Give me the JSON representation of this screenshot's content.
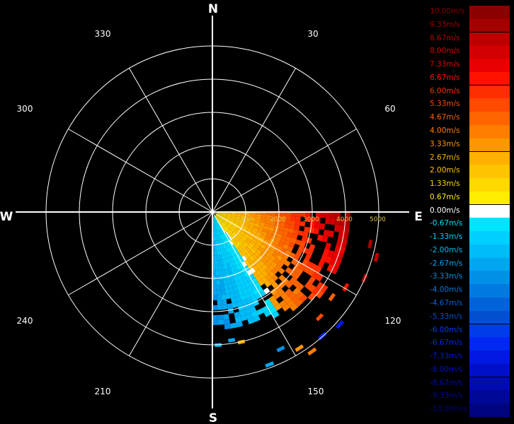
{
  "compass": {
    "north": "N",
    "east": "E",
    "south": "S",
    "west": "W"
  },
  "angle_labels": [
    "30",
    "60",
    "120",
    "150",
    "210",
    "240",
    "300",
    "330"
  ],
  "chart_data": {
    "type": "heatmap",
    "projection": "polar",
    "range_labels": [
      "1000",
      "2000",
      "3000",
      "4000",
      "5000"
    ],
    "range_max": 5000,
    "sector_azimuths": [
      90,
      180
    ],
    "colorscale": [
      {
        "label": "10.00m/s",
        "value": 10.0,
        "color": "#8b0000"
      },
      {
        "label": "9.33m/s",
        "value": 9.33,
        "color": "#a30000"
      },
      {
        "label": "8.67m/s",
        "value": 8.67,
        "color": "#bb0000"
      },
      {
        "label": "8.00m/s",
        "value": 8.0,
        "color": "#d20000"
      },
      {
        "label": "7.33m/s",
        "value": 7.33,
        "color": "#e80000"
      },
      {
        "label": "6.67m/s",
        "value": 6.67,
        "color": "#ff1200"
      },
      {
        "label": "6.00m/s",
        "value": 6.0,
        "color": "#ff2e00"
      },
      {
        "label": "5.33m/s",
        "value": 5.33,
        "color": "#ff4a00"
      },
      {
        "label": "4.67m/s",
        "value": 4.67,
        "color": "#ff6400"
      },
      {
        "label": "4.00m/s",
        "value": 4.0,
        "color": "#ff7e00"
      },
      {
        "label": "3.33m/s",
        "value": 3.33,
        "color": "#ff9800"
      },
      {
        "label": "2.67m/s",
        "value": 2.67,
        "color": "#ffb000"
      },
      {
        "label": "2.00m/s",
        "value": 2.0,
        "color": "#ffc400"
      },
      {
        "label": "1.33m/s",
        "value": 1.33,
        "color": "#ffd800"
      },
      {
        "label": "0.67m/s",
        "value": 0.67,
        "color": "#ffec00"
      },
      {
        "label": "0.00m/s",
        "value": 0.0,
        "color": "#ffffff"
      },
      {
        "label": "-0.67m/s",
        "value": -0.67,
        "color": "#00e4ff"
      },
      {
        "label": "-1.33m/s",
        "value": -1.33,
        "color": "#00d0ff"
      },
      {
        "label": "-2.00m/s",
        "value": -2.0,
        "color": "#00bcf8"
      },
      {
        "label": "-2.67m/s",
        "value": -2.67,
        "color": "#00a6f0"
      },
      {
        "label": "-3.33m/s",
        "value": -3.33,
        "color": "#0090e8"
      },
      {
        "label": "-4.00m/s",
        "value": -4.0,
        "color": "#007ae0"
      },
      {
        "label": "-4.67m/s",
        "value": -4.67,
        "color": "#0064d8"
      },
      {
        "label": "-5.33m/s",
        "value": -5.33,
        "color": "#0050d0"
      },
      {
        "label": "-6.00m/s",
        "value": -6.0,
        "color": "#003ce8"
      },
      {
        "label": "-6.67m/s",
        "value": -6.67,
        "color": "#0028f0"
      },
      {
        "label": "-7.33m/s",
        "value": -7.33,
        "color": "#0018e0"
      },
      {
        "label": "-8.00m/s",
        "value": -8.0,
        "color": "#0010c8"
      },
      {
        "label": "-8.67m/s",
        "value": -8.67,
        "color": "#000cb0"
      },
      {
        "label": "-9.33m/s",
        "value": -9.33,
        "color": "#000898"
      },
      {
        "label": "-10.00m/s",
        "value": -10.0,
        "color": "#000480"
      }
    ]
  }
}
